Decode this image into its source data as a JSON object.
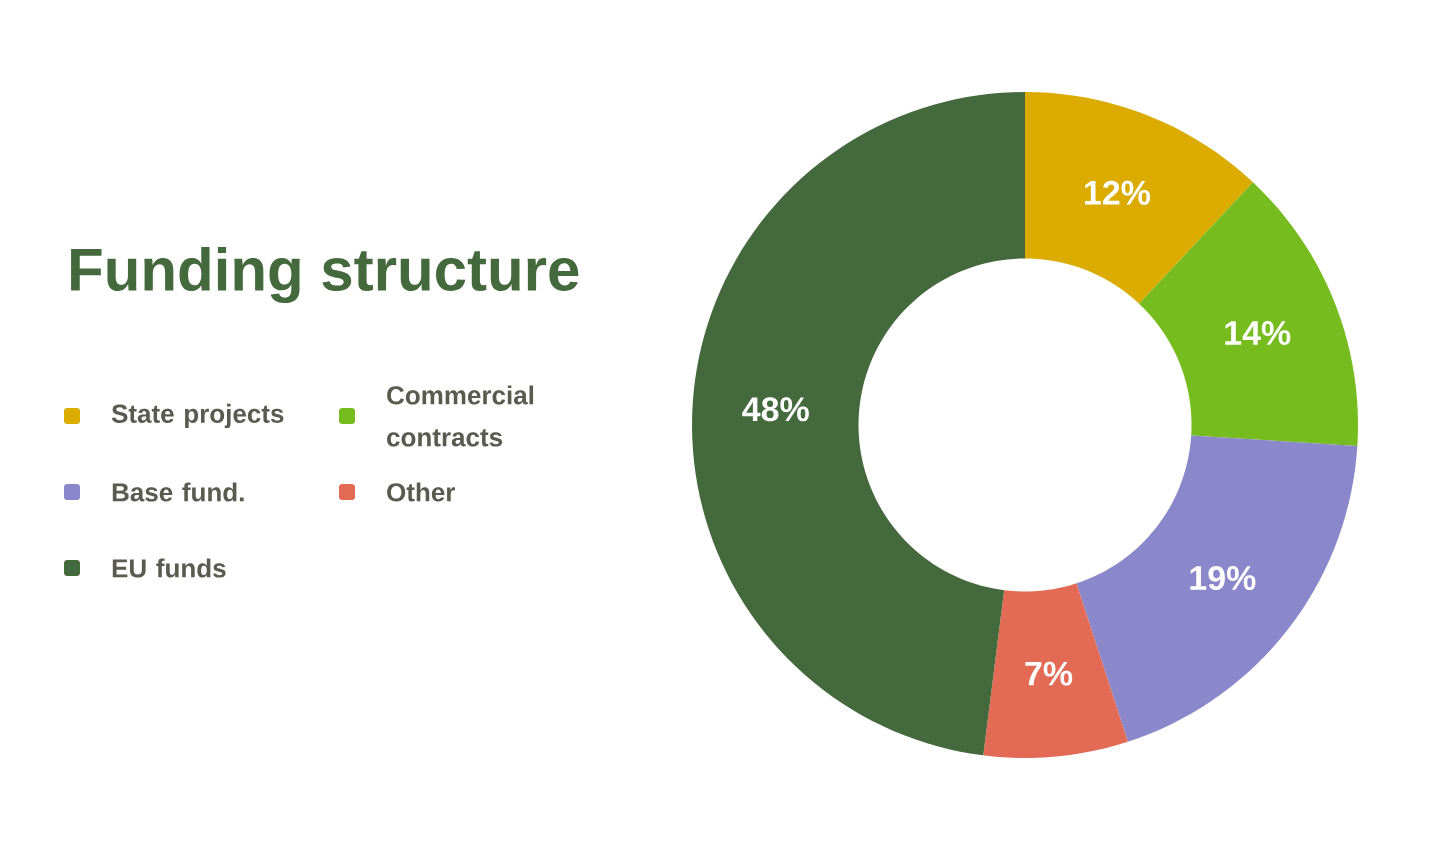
{
  "chart_data": {
    "type": "donut",
    "title": "Funding structure",
    "categories": [
      "State projects",
      "Commercial contracts",
      "Base fund.",
      "Other",
      "EU funds"
    ],
    "values": [
      12,
      14,
      19,
      7,
      48
    ],
    "value_labels": [
      "12%",
      "14%",
      "19%",
      "7%",
      "48%"
    ],
    "colors": [
      "#dbab00",
      "#77bc1f",
      "#8a87cb",
      "#e36a54",
      "#44693d"
    ],
    "legend": "left"
  }
}
